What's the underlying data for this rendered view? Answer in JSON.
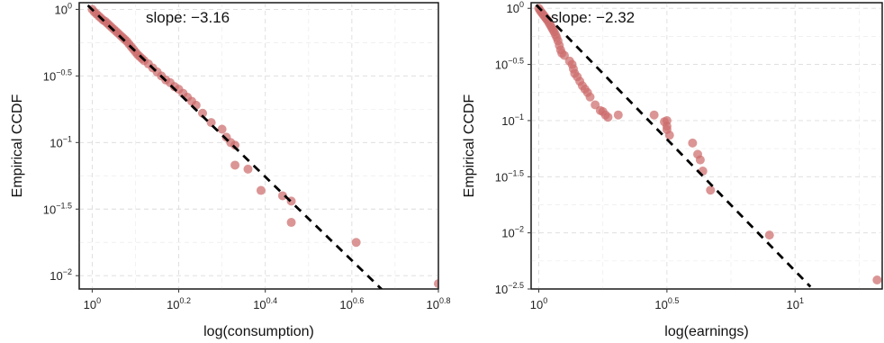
{
  "chart_data": [
    {
      "type": "scatter",
      "xlabel": "log(consumption)",
      "ylabel": "Empirical CCDF",
      "annotation": "slope: −3.16",
      "axes": {
        "x_scale": "log10",
        "y_scale": "log10",
        "xlim_exp": [
          -0.03,
          0.8
        ],
        "ylim_exp": [
          -2.1,
          0.05
        ]
      },
      "x_ticks": [
        {
          "base": "10",
          "exp": "0",
          "value": 0
        },
        {
          "base": "10",
          "exp": "0.2",
          "value": 0.2
        },
        {
          "base": "10",
          "exp": "0.4",
          "value": 0.4
        },
        {
          "base": "10",
          "exp": "0.6",
          "value": 0.6
        },
        {
          "base": "10",
          "exp": "0.8",
          "value": 0.8
        }
      ],
      "y_ticks": [
        {
          "base": "10",
          "exp": "0",
          "value": 0
        },
        {
          "base": "10",
          "exp": "−0.5",
          "value": -0.5
        },
        {
          "base": "10",
          "exp": "−1",
          "value": -1
        },
        {
          "base": "10",
          "exp": "−1.5",
          "value": -1.5
        },
        {
          "base": "10",
          "exp": "−2",
          "value": -2
        }
      ],
      "points_log10": [
        [
          0.0,
          0.0
        ],
        [
          0.005,
          -0.02
        ],
        [
          0.01,
          -0.035
        ],
        [
          0.015,
          -0.05
        ],
        [
          0.02,
          -0.065
        ],
        [
          0.025,
          -0.08
        ],
        [
          0.03,
          -0.09
        ],
        [
          0.035,
          -0.105
        ],
        [
          0.04,
          -0.12
        ],
        [
          0.045,
          -0.135
        ],
        [
          0.05,
          -0.15
        ],
        [
          0.055,
          -0.165
        ],
        [
          0.06,
          -0.18
        ],
        [
          0.065,
          -0.195
        ],
        [
          0.07,
          -0.21
        ],
        [
          0.075,
          -0.225
        ],
        [
          0.08,
          -0.24
        ],
        [
          0.085,
          -0.26
        ],
        [
          0.09,
          -0.28
        ],
        [
          0.095,
          -0.3
        ],
        [
          0.1,
          -0.32
        ],
        [
          0.105,
          -0.34
        ],
        [
          0.11,
          -0.355
        ],
        [
          0.115,
          -0.37
        ],
        [
          0.12,
          -0.385
        ],
        [
          0.13,
          -0.41
        ],
        [
          0.14,
          -0.44
        ],
        [
          0.15,
          -0.47
        ],
        [
          0.16,
          -0.5
        ],
        [
          0.17,
          -0.53
        ],
        [
          0.18,
          -0.55
        ],
        [
          0.19,
          -0.58
        ],
        [
          0.2,
          -0.6
        ],
        [
          0.21,
          -0.63
        ],
        [
          0.22,
          -0.66
        ],
        [
          0.23,
          -0.69
        ],
        [
          0.24,
          -0.72
        ],
        [
          0.255,
          -0.78
        ],
        [
          0.275,
          -0.85
        ],
        [
          0.3,
          -0.9
        ],
        [
          0.31,
          -0.96
        ],
        [
          0.32,
          -1.0
        ],
        [
          0.33,
          -1.02
        ],
        [
          0.36,
          -1.2
        ],
        [
          0.33,
          -1.17
        ],
        [
          0.39,
          -1.36
        ],
        [
          0.44,
          -1.4
        ],
        [
          0.46,
          -1.44
        ],
        [
          0.46,
          -1.6
        ],
        [
          0.61,
          -1.75
        ],
        [
          0.8,
          -2.06
        ]
      ],
      "fit_line_log10": [
        [
          -0.01,
          0.03
        ],
        [
          0.7,
          -2.2
        ]
      ]
    },
    {
      "type": "scatter",
      "xlabel": "log(earnings)",
      "ylabel": "Empirical CCDF",
      "annotation": "slope: −2.32",
      "axes": {
        "x_scale": "log10",
        "y_scale": "log10",
        "xlim_exp": [
          -0.03,
          1.34
        ],
        "ylim_exp": [
          -2.5,
          0.05
        ]
      },
      "x_ticks": [
        {
          "base": "10",
          "exp": "0",
          "value": 0
        },
        {
          "base": "10",
          "exp": "0.5",
          "value": 0.5
        },
        {
          "base": "10",
          "exp": "1",
          "value": 1
        }
      ],
      "y_ticks": [
        {
          "base": "10",
          "exp": "0",
          "value": 0
        },
        {
          "base": "10",
          "exp": "−0.5",
          "value": -0.5
        },
        {
          "base": "10",
          "exp": "−1",
          "value": -1
        },
        {
          "base": "10",
          "exp": "−1.5",
          "value": -1.5
        },
        {
          "base": "10",
          "exp": "−2",
          "value": -2
        },
        {
          "base": "10",
          "exp": "−2.5",
          "value": -2.5
        }
      ],
      "points_log10": [
        [
          0.0,
          0.0
        ],
        [
          0.005,
          -0.02
        ],
        [
          0.01,
          -0.035
        ],
        [
          0.015,
          -0.05
        ],
        [
          0.02,
          -0.065
        ],
        [
          0.025,
          -0.08
        ],
        [
          0.03,
          -0.095
        ],
        [
          0.035,
          -0.11
        ],
        [
          0.04,
          -0.13
        ],
        [
          0.045,
          -0.15
        ],
        [
          0.05,
          -0.17
        ],
        [
          0.055,
          -0.19
        ],
        [
          0.06,
          -0.21
        ],
        [
          0.065,
          -0.235
        ],
        [
          0.07,
          -0.26
        ],
        [
          0.075,
          -0.29
        ],
        [
          0.08,
          -0.33
        ],
        [
          0.085,
          -0.37
        ],
        [
          0.09,
          -0.4
        ],
        [
          0.1,
          -0.42
        ],
        [
          0.12,
          -0.47
        ],
        [
          0.13,
          -0.5
        ],
        [
          0.135,
          -0.54
        ],
        [
          0.14,
          -0.58
        ],
        [
          0.15,
          -0.61
        ],
        [
          0.16,
          -0.65
        ],
        [
          0.17,
          -0.69
        ],
        [
          0.18,
          -0.72
        ],
        [
          0.19,
          -0.75
        ],
        [
          0.2,
          -0.79
        ],
        [
          0.22,
          -0.86
        ],
        [
          0.24,
          -0.91
        ],
        [
          0.25,
          -0.92
        ],
        [
          0.26,
          -0.95
        ],
        [
          0.27,
          -0.97
        ],
        [
          0.31,
          -0.95
        ],
        [
          0.45,
          -0.95
        ],
        [
          0.5,
          -1.0
        ],
        [
          0.5,
          -1.05
        ],
        [
          0.5,
          -1.08
        ],
        [
          0.51,
          -1.13
        ],
        [
          0.49,
          -1.01
        ],
        [
          0.6,
          -1.2
        ],
        [
          0.62,
          -1.3
        ],
        [
          0.63,
          -1.35
        ],
        [
          0.64,
          -1.45
        ],
        [
          0.67,
          -1.62
        ],
        [
          0.9,
          -2.02
        ],
        [
          1.32,
          -2.42
        ]
      ],
      "fit_line_log10": [
        [
          -0.01,
          0.03
        ],
        [
          1.06,
          -2.48
        ]
      ]
    }
  ]
}
